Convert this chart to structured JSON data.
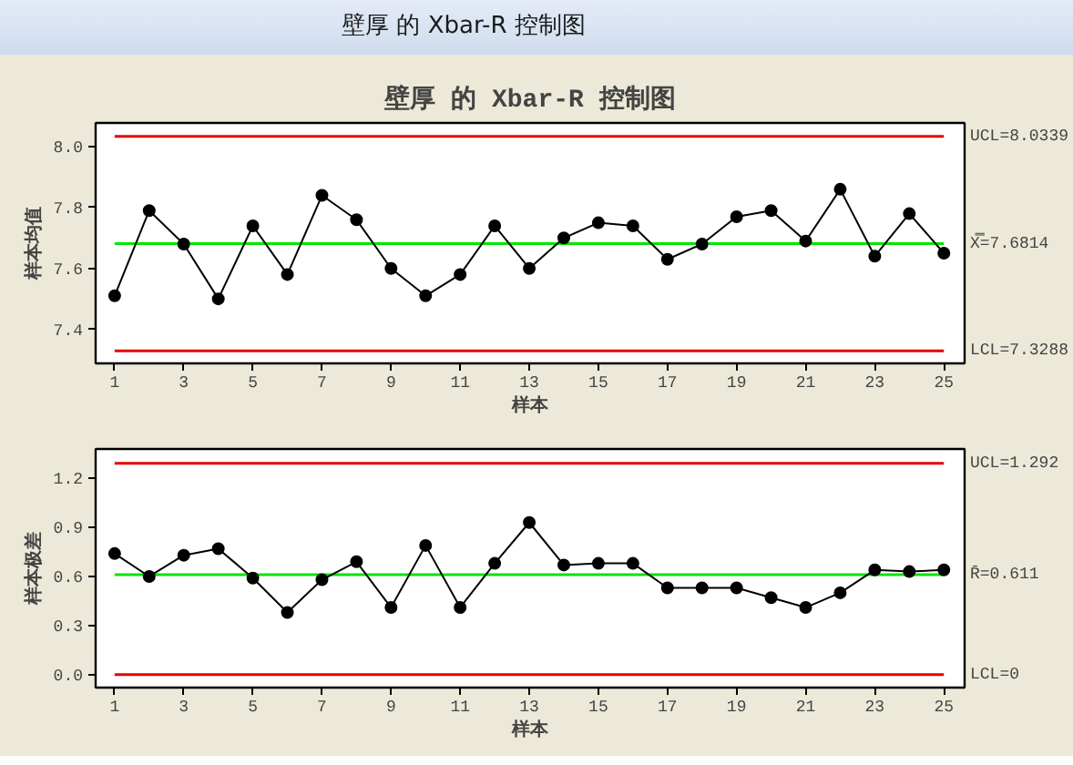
{
  "chart_data": [
    {
      "type": "line",
      "title": "壁厚 的 Xbar-R 控制图",
      "annotations": [
        "壁厚 的 Xbar-R 控制图"
      ],
      "xlabel": "样本",
      "ylabel": "样本均值",
      "x": [
        1,
        2,
        3,
        4,
        5,
        6,
        7,
        8,
        9,
        10,
        11,
        12,
        13,
        14,
        15,
        16,
        17,
        18,
        19,
        20,
        21,
        22,
        23,
        24,
        25
      ],
      "series": [
        {
          "color": "#000000",
          "values": [
            7.51,
            7.79,
            7.68,
            7.5,
            7.74,
            7.58,
            7.84,
            7.76,
            7.6,
            7.51,
            7.58,
            7.74,
            7.6,
            7.7,
            7.75,
            7.74,
            7.63,
            7.68,
            7.77,
            7.79,
            7.69,
            7.86,
            7.64,
            7.78,
            7.65
          ]
        }
      ],
      "xlim": [
        0.45,
        25.6
      ],
      "ylim": [
        7.288,
        8.078
      ],
      "xticks": [
        1,
        3,
        5,
        7,
        9,
        11,
        13,
        15,
        17,
        19,
        21,
        23,
        25
      ],
      "yticks": [
        7.4,
        7.6,
        7.8,
        {
          "value": 8,
          "label": "8.0"
        }
      ],
      "ref_lines": [
        {
          "axis": "y",
          "value": 8.0339,
          "label": "UCL=8.0339",
          "color": "#e60000"
        },
        {
          "axis": "y",
          "value": 7.6814,
          "label": "X̿=7.6814",
          "color": "#00e600"
        },
        {
          "axis": "y",
          "value": 7.3288,
          "label": "LCL=7.3288",
          "color": "#e60000"
        }
      ],
      "marker": "circle",
      "line_style": "solid"
    },
    {
      "type": "line",
      "xlabel": "样本",
      "ylabel": "样本极差",
      "x": [
        1,
        2,
        3,
        4,
        5,
        6,
        7,
        8,
        9,
        10,
        11,
        12,
        13,
        14,
        15,
        16,
        17,
        18,
        19,
        20,
        21,
        22,
        23,
        24,
        25
      ],
      "series": [
        {
          "color": "#000000",
          "values": [
            0.74,
            0.6,
            0.73,
            0.77,
            0.59,
            0.38,
            0.58,
            0.69,
            0.41,
            0.79,
            0.41,
            0.68,
            0.93,
            0.67,
            0.68,
            0.68,
            0.53,
            0.53,
            0.53,
            0.47,
            0.41,
            0.5,
            0.64,
            0.63,
            0.64
          ]
        }
      ],
      "xlim": [
        0.45,
        25.6
      ],
      "ylim": [
        -0.08,
        1.38
      ],
      "xticks": [
        1,
        3,
        5,
        7,
        9,
        11,
        13,
        15,
        17,
        19,
        21,
        23,
        25
      ],
      "yticks": [
        {
          "value": 0,
          "label": "0.0"
        },
        0.3,
        0.6,
        0.9,
        1.2
      ],
      "ref_lines": [
        {
          "axis": "y",
          "value": 1.292,
          "label": "UCL=1.292",
          "color": "#e60000"
        },
        {
          "axis": "y",
          "value": 0.611,
          "label": "R̄=0.611",
          "color": "#00e600"
        },
        {
          "axis": "y",
          "value": 0,
          "label": "LCL=0",
          "color": "#e60000"
        }
      ],
      "marker": "circle",
      "line_style": "solid"
    }
  ]
}
